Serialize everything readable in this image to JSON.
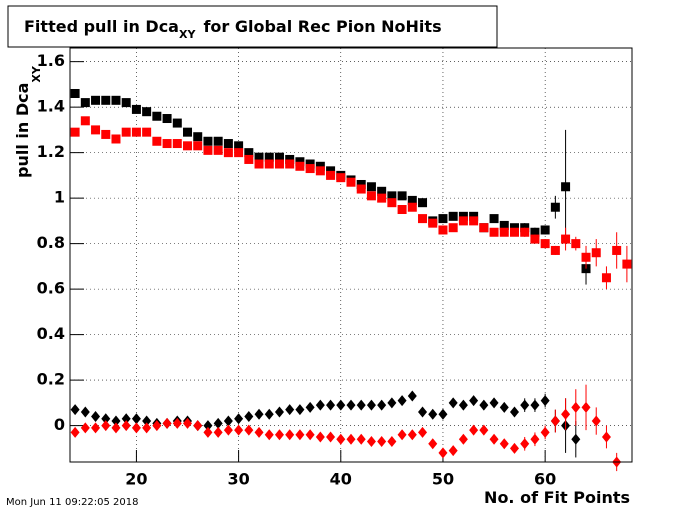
{
  "chart_data": {
    "type": "scatter",
    "title": {
      "main": "Fitted pull in Dca",
      "sub": "XY",
      "rest": "for Global Rec Pion NoHits"
    },
    "y_label": {
      "main": "pull in Dca",
      "sub": "XY"
    },
    "x_label": "No. of Fit Points",
    "timestamp": "Mon Jun 11 09:22:05 2018",
    "xlim": [
      13.5,
      68.5
    ],
    "ylim": [
      -0.16,
      1.66
    ],
    "xticks": [
      20,
      30,
      40,
      50,
      60
    ],
    "yticks": [
      0,
      0.2,
      0.4,
      0.6,
      0.8,
      1,
      1.2,
      1.4,
      1.6
    ],
    "grid": true,
    "x": [
      14,
      15,
      16,
      17,
      18,
      19,
      20,
      21,
      22,
      23,
      24,
      25,
      26,
      27,
      28,
      29,
      30,
      31,
      32,
      33,
      34,
      35,
      36,
      37,
      38,
      39,
      40,
      41,
      42,
      43,
      44,
      45,
      46,
      47,
      48,
      49,
      50,
      51,
      52,
      53,
      54,
      55,
      56,
      57,
      58,
      59,
      60,
      61,
      62,
      63,
      64,
      65,
      66,
      67,
      68
    ],
    "series": [
      {
        "color": "#000000",
        "marker": "square",
        "values": [
          1.46,
          1.42,
          1.43,
          1.43,
          1.43,
          1.42,
          1.39,
          1.38,
          1.36,
          1.35,
          1.33,
          1.29,
          1.27,
          1.25,
          1.25,
          1.24,
          1.23,
          1.2,
          1.18,
          1.18,
          1.18,
          1.17,
          1.16,
          1.15,
          1.14,
          1.12,
          1.1,
          1.08,
          1.06,
          1.05,
          1.03,
          1.01,
          1.01,
          0.99,
          0.98,
          0.9,
          0.91,
          0.92,
          0.92,
          0.92,
          0.87,
          0.91,
          0.88,
          0.87,
          0.87,
          0.85,
          0.86,
          0.96,
          1.05,
          null,
          0.69,
          null,
          null,
          null,
          null
        ],
        "errors": [
          0.01,
          0.01,
          0.01,
          0.01,
          0.01,
          0.01,
          0.01,
          0.01,
          0.01,
          0.01,
          0.01,
          0.01,
          0.01,
          0.01,
          0.01,
          0.01,
          0.01,
          0.01,
          0.01,
          0.01,
          0.01,
          0.01,
          0.01,
          0.01,
          0.01,
          0.01,
          0.01,
          0.01,
          0.01,
          0.01,
          0.01,
          0.01,
          0.01,
          0.015,
          0.015,
          0.015,
          0.015,
          0.015,
          0.015,
          0.015,
          0.015,
          0.015,
          0.015,
          0.015,
          0.02,
          0.02,
          0.02,
          0.05,
          0.25,
          null,
          0.07,
          null,
          null,
          null,
          null
        ]
      },
      {
        "color": "#ff0000",
        "marker": "square",
        "values": [
          1.29,
          1.34,
          1.3,
          1.28,
          1.26,
          1.29,
          1.29,
          1.29,
          1.25,
          1.24,
          1.24,
          1.23,
          1.23,
          1.21,
          1.21,
          1.2,
          1.2,
          1.17,
          1.15,
          1.15,
          1.15,
          1.15,
          1.14,
          1.13,
          1.12,
          1.1,
          1.09,
          1.07,
          1.04,
          1.01,
          1.0,
          0.98,
          0.95,
          0.96,
          0.91,
          0.89,
          0.86,
          0.87,
          0.9,
          0.9,
          0.87,
          0.85,
          0.85,
          0.85,
          0.85,
          0.82,
          0.8,
          0.77,
          0.82,
          0.8,
          0.74,
          0.76,
          0.65,
          0.77,
          0.71
        ],
        "errors": [
          0.01,
          0.01,
          0.01,
          0.01,
          0.01,
          0.01,
          0.01,
          0.01,
          0.01,
          0.01,
          0.01,
          0.01,
          0.01,
          0.01,
          0.01,
          0.01,
          0.01,
          0.01,
          0.01,
          0.01,
          0.01,
          0.01,
          0.01,
          0.01,
          0.01,
          0.01,
          0.01,
          0.01,
          0.01,
          0.01,
          0.01,
          0.01,
          0.01,
          0.015,
          0.015,
          0.015,
          0.015,
          0.015,
          0.015,
          0.015,
          0.015,
          0.015,
          0.015,
          0.015,
          0.02,
          0.02,
          0.02,
          0.02,
          0.05,
          0.03,
          0.05,
          0.06,
          0.05,
          0.08,
          0.08
        ]
      },
      {
        "color": "#000000",
        "marker": "diamond",
        "values": [
          0.07,
          0.06,
          0.04,
          0.03,
          0.02,
          0.03,
          0.03,
          0.02,
          0.01,
          0.01,
          0.02,
          0.02,
          0.0,
          0.0,
          0.01,
          0.02,
          0.03,
          0.04,
          0.05,
          0.05,
          0.06,
          0.07,
          0.07,
          0.08,
          0.09,
          0.09,
          0.09,
          0.09,
          0.09,
          0.09,
          0.09,
          0.1,
          0.11,
          0.13,
          0.06,
          0.05,
          0.05,
          0.1,
          0.09,
          0.11,
          0.09,
          0.1,
          0.08,
          0.06,
          0.09,
          0.09,
          0.11,
          0.02,
          0.0,
          -0.06,
          null,
          null,
          null,
          null,
          null
        ],
        "errors": [
          0.01,
          0.01,
          0.01,
          0.01,
          0.01,
          0.01,
          0.01,
          0.01,
          0.01,
          0.01,
          0.01,
          0.01,
          0.01,
          0.01,
          0.01,
          0.01,
          0.01,
          0.01,
          0.01,
          0.01,
          0.01,
          0.01,
          0.01,
          0.01,
          0.01,
          0.01,
          0.01,
          0.01,
          0.01,
          0.01,
          0.01,
          0.01,
          0.01,
          0.02,
          0.02,
          0.02,
          0.02,
          0.02,
          0.02,
          0.02,
          0.02,
          0.02,
          0.02,
          0.02,
          0.03,
          0.03,
          0.03,
          0.05,
          0.12,
          0.08,
          null,
          null,
          null,
          null,
          null
        ]
      },
      {
        "color": "#ff0000",
        "marker": "diamond",
        "values": [
          -0.03,
          -0.01,
          -0.01,
          0.0,
          -0.01,
          0.0,
          -0.01,
          -0.01,
          0.0,
          0.01,
          0.01,
          0.01,
          0.0,
          -0.03,
          -0.03,
          -0.02,
          -0.02,
          -0.02,
          -0.03,
          -0.04,
          -0.04,
          -0.04,
          -0.04,
          -0.04,
          -0.05,
          -0.05,
          -0.06,
          -0.06,
          -0.06,
          -0.07,
          -0.07,
          -0.07,
          -0.04,
          -0.04,
          -0.03,
          -0.08,
          -0.12,
          -0.11,
          -0.06,
          -0.02,
          -0.02,
          -0.06,
          -0.08,
          -0.1,
          -0.08,
          -0.06,
          -0.03,
          0.02,
          0.05,
          0.08,
          0.08,
          0.02,
          -0.05,
          -0.16,
          null
        ],
        "errors": [
          0.01,
          0.01,
          0.01,
          0.01,
          0.01,
          0.01,
          0.01,
          0.01,
          0.01,
          0.01,
          0.01,
          0.01,
          0.01,
          0.01,
          0.01,
          0.01,
          0.01,
          0.01,
          0.01,
          0.01,
          0.01,
          0.01,
          0.01,
          0.01,
          0.01,
          0.01,
          0.01,
          0.01,
          0.01,
          0.01,
          0.01,
          0.01,
          0.01,
          0.02,
          0.02,
          0.02,
          0.02,
          0.02,
          0.02,
          0.02,
          0.02,
          0.02,
          0.02,
          0.02,
          0.03,
          0.03,
          0.03,
          0.05,
          0.07,
          0.08,
          0.1,
          0.06,
          0.05,
          0.04,
          null
        ]
      }
    ]
  }
}
